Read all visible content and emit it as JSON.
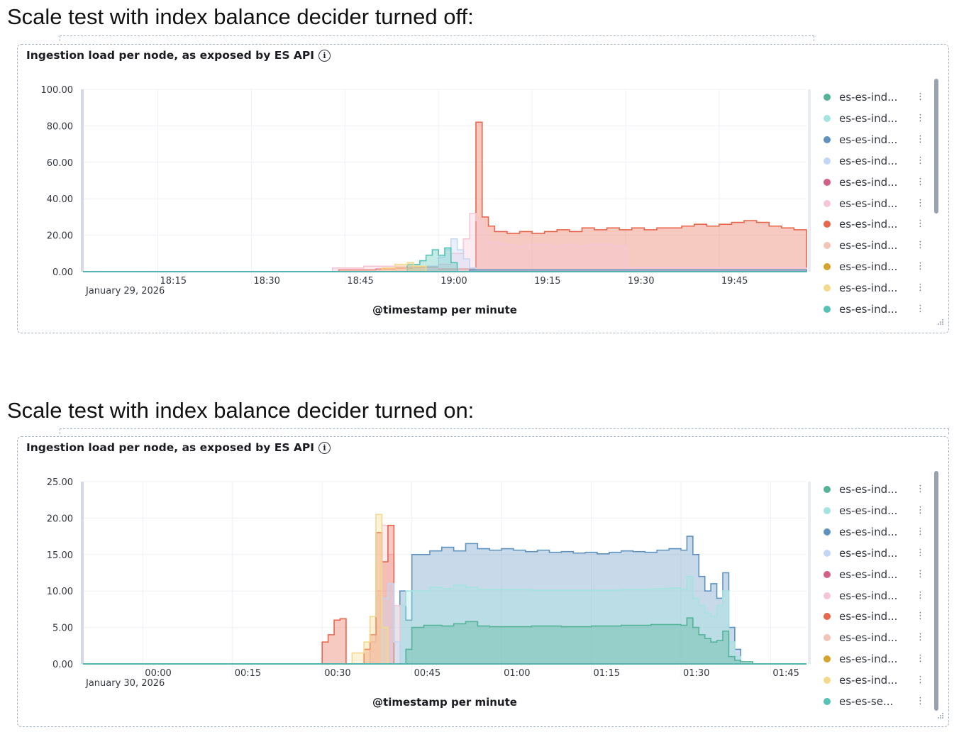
{
  "headings": {
    "off": "Scale test with index balance decider turned off:",
    "on": "Scale test with index balance decider turned on:"
  },
  "colors": {
    "teal": "#54b399",
    "light_teal": "#a3e4e0",
    "blue": "#6092c0",
    "light_blue": "#c4d6f5",
    "pink": "#d36086",
    "light_pink": "#f7c6d6",
    "red": "#e7664c",
    "light_red": "#f5c4b8",
    "gold": "#d6bf57",
    "light_gold": "#f3d98b",
    "grid": "#edf0f5",
    "axis_text": "#343741"
  },
  "chart_data": [
    {
      "type": "area",
      "title": "Ingestion load per node, as exposed by ES API",
      "info_icon": "info-icon",
      "xlabel": "@timestamp per minute",
      "ylabel": "",
      "ylim": [
        0,
        100
      ],
      "y_ticks": [
        "100.00",
        "80.00",
        "60.00",
        "40.00",
        "20.00",
        "0.00"
      ],
      "x_ticks": [
        "18:15",
        "18:30",
        "18:45",
        "19:00",
        "19:15",
        "19:30",
        "19:45"
      ],
      "x_date_label": "January 29, 2026",
      "x_range_minutes": [
        "18:03",
        "19:59"
      ],
      "grid": true,
      "legend_position": "right",
      "legend": [
        "es-es-ind...",
        "es-es-ind...",
        "es-es-ind...",
        "es-es-ind...",
        "es-es-ind...",
        "es-es-ind...",
        "es-es-ind...",
        "es-es-ind...",
        "es-es-ind...",
        "es-es-ind...",
        "es-es-ind..."
      ],
      "legend_colors": [
        "#54b399",
        "#a3e4e0",
        "#6092c0",
        "#c4d6f5",
        "#d36086",
        "#f7c6d6",
        "#e7664c",
        "#f5c4b8",
        "#d6a32b",
        "#f3d98b",
        "#54c2b5"
      ],
      "series": [
        {
          "color": "#e7664c",
          "points": [
            [
              "18:44",
              0
            ],
            [
              "18:44",
              1
            ],
            [
              "18:50",
              1.5
            ],
            [
              "18:53",
              2
            ],
            [
              "18:56",
              2.5
            ],
            [
              "19:00",
              1.5
            ],
            [
              "19:06",
              10
            ],
            [
              "19:06",
              82
            ],
            [
              "19:07",
              82
            ],
            [
              "19:07",
              30
            ],
            [
              "19:08",
              25
            ],
            [
              "19:09",
              22
            ],
            [
              "19:11",
              21
            ],
            [
              "19:13",
              22
            ],
            [
              "19:15",
              21
            ],
            [
              "19:17",
              22
            ],
            [
              "19:19",
              23
            ],
            [
              "19:21",
              22
            ],
            [
              "19:23",
              24
            ],
            [
              "19:25",
              23
            ],
            [
              "19:27",
              24
            ],
            [
              "19:29",
              23
            ],
            [
              "19:31",
              24
            ],
            [
              "19:33",
              23
            ],
            [
              "19:35",
              24
            ],
            [
              "19:37",
              24
            ],
            [
              "19:39",
              25
            ],
            [
              "19:41",
              26
            ],
            [
              "19:43",
              25
            ],
            [
              "19:45",
              26
            ],
            [
              "19:47",
              27
            ],
            [
              "19:49",
              28
            ],
            [
              "19:51",
              27
            ],
            [
              "19:53",
              25
            ],
            [
              "19:55",
              24
            ],
            [
              "19:57",
              23
            ],
            [
              "19:59",
              23
            ],
            [
              "19:59",
              0
            ]
          ]
        },
        {
          "color": "#f7c6d6",
          "points": [
            [
              "18:43",
              0
            ],
            [
              "18:43",
              2
            ],
            [
              "18:48",
              3
            ],
            [
              "18:52",
              3
            ],
            [
              "18:56",
              2
            ],
            [
              "19:00",
              4
            ],
            [
              "19:02",
              10
            ],
            [
              "19:04",
              18
            ],
            [
              "19:05",
              32
            ],
            [
              "19:06",
              28
            ],
            [
              "19:07",
              22
            ],
            [
              "19:08",
              16
            ],
            [
              "19:10",
              15
            ],
            [
              "19:12",
              14
            ],
            [
              "19:14",
              15
            ],
            [
              "19:16",
              15
            ],
            [
              "19:18",
              14
            ],
            [
              "19:20",
              15
            ],
            [
              "19:22",
              14
            ],
            [
              "19:24",
              15
            ],
            [
              "19:26",
              15
            ],
            [
              "19:28",
              14
            ],
            [
              "19:30",
              14
            ],
            [
              "19:30",
              2
            ],
            [
              "19:59",
              2
            ],
            [
              "19:59",
              0
            ]
          ]
        },
        {
          "color": "#c4d6f5",
          "points": [
            [
              "18:58",
              0
            ],
            [
              "18:58",
              3
            ],
            [
              "19:00",
              8
            ],
            [
              "19:01",
              12
            ],
            [
              "19:02",
              18
            ],
            [
              "19:03",
              12
            ],
            [
              "19:04",
              7
            ],
            [
              "19:05",
              2
            ],
            [
              "19:06",
              0
            ]
          ]
        },
        {
          "color": "#54c2b5",
          "points": [
            [
              "18:55",
              0
            ],
            [
              "18:55",
              4
            ],
            [
              "18:57",
              6
            ],
            [
              "18:58",
              9
            ],
            [
              "18:59",
              12
            ],
            [
              "19:00",
              9
            ],
            [
              "19:01",
              13
            ],
            [
              "19:02",
              5
            ],
            [
              "19:03",
              0
            ]
          ]
        },
        {
          "color": "#f3d98b",
          "points": [
            [
              "18:51",
              0
            ],
            [
              "18:51",
              2
            ],
            [
              "18:53",
              4
            ],
            [
              "18:55",
              5
            ],
            [
              "18:56",
              3
            ],
            [
              "18:58",
              0
            ]
          ]
        },
        {
          "color": "#6092c0",
          "points": [
            [
              "19:05",
              0
            ],
            [
              "19:05",
              1
            ],
            [
              "19:59",
              1
            ],
            [
              "19:59",
              0
            ]
          ]
        }
      ]
    },
    {
      "type": "area",
      "title": "Ingestion load per node, as exposed by ES API",
      "info_icon": "info-icon",
      "xlabel": "@timestamp per minute",
      "ylabel": "",
      "ylim": [
        0,
        25
      ],
      "y_ticks": [
        "25.00",
        "20.00",
        "15.00",
        "10.00",
        "5.00",
        "0.00"
      ],
      "x_ticks": [
        "00:00",
        "00:15",
        "00:30",
        "00:45",
        "01:00",
        "01:15",
        "01:30",
        "01:45"
      ],
      "x_date_label": "January 30, 2026",
      "x_range_minutes": [
        "23:50",
        "01:51"
      ],
      "grid": true,
      "legend_position": "right",
      "legend": [
        "es-es-ind...",
        "es-es-ind...",
        "es-es-ind...",
        "es-es-ind...",
        "es-es-ind...",
        "es-es-ind...",
        "es-es-ind...",
        "es-es-ind...",
        "es-es-ind...",
        "es-es-ind...",
        "es-es-se..."
      ],
      "legend_colors": [
        "#54b399",
        "#a3e4e0",
        "#6092c0",
        "#c4d6f5",
        "#d36086",
        "#f7c6d6",
        "#e7664c",
        "#f5c4b8",
        "#d6a32b",
        "#f3d98b",
        "#54c2b5"
      ],
      "series": [
        {
          "color": "#6092c0",
          "points": [
            [
              "00:43",
              0
            ],
            [
              "00:43",
              10
            ],
            [
              "00:44",
              6
            ],
            [
              "00:45",
              15
            ],
            [
              "00:48",
              15.5
            ],
            [
              "00:50",
              16
            ],
            [
              "00:52",
              15.5
            ],
            [
              "00:54",
              16.5
            ],
            [
              "00:56",
              15.8
            ],
            [
              "00:58",
              15.6
            ],
            [
              "01:00",
              15.8
            ],
            [
              "01:02",
              15.6
            ],
            [
              "01:04",
              15.4
            ],
            [
              "01:06",
              15.6
            ],
            [
              "01:08",
              15.3
            ],
            [
              "01:10",
              15.4
            ],
            [
              "01:12",
              15.2
            ],
            [
              "01:14",
              15.3
            ],
            [
              "01:16",
              15.1
            ],
            [
              "01:18",
              15.3
            ],
            [
              "01:20",
              15.5
            ],
            [
              "01:22",
              15.4
            ],
            [
              "01:24",
              15.3
            ],
            [
              "01:26",
              15.6
            ],
            [
              "01:28",
              15.8
            ],
            [
              "01:30",
              15.6
            ],
            [
              "01:31",
              17.5
            ],
            [
              "01:32",
              15
            ],
            [
              "01:33",
              12
            ],
            [
              "01:34",
              10
            ],
            [
              "01:35",
              11
            ],
            [
              "01:36",
              9
            ],
            [
              "01:37",
              12.5
            ],
            [
              "01:38",
              5
            ],
            [
              "01:39",
              2
            ],
            [
              "01:40",
              0
            ]
          ]
        },
        {
          "color": "#a3e4e0",
          "points": [
            [
              "00:42",
              0
            ],
            [
              "00:42",
              8
            ],
            [
              "00:44",
              10
            ],
            [
              "00:46",
              10
            ],
            [
              "00:48",
              10.5
            ],
            [
              "00:50",
              10.3
            ],
            [
              "00:52",
              10.8
            ],
            [
              "00:54",
              10.5
            ],
            [
              "00:56",
              10.2
            ],
            [
              "00:58",
              10.2
            ],
            [
              "01:00",
              10.2
            ],
            [
              "01:05",
              10.1
            ],
            [
              "01:10",
              10.1
            ],
            [
              "01:15",
              10.1
            ],
            [
              "01:20",
              10.2
            ],
            [
              "01:25",
              10.3
            ],
            [
              "01:28",
              10.4
            ],
            [
              "01:30",
              10.2
            ],
            [
              "01:31",
              12
            ],
            [
              "01:32",
              9
            ],
            [
              "01:33",
              8
            ],
            [
              "01:34",
              7
            ],
            [
              "01:35",
              6.5
            ],
            [
              "01:36",
              8
            ],
            [
              "01:37",
              10
            ],
            [
              "01:38",
              3
            ],
            [
              "01:39",
              1
            ],
            [
              "01:40",
              0
            ]
          ]
        },
        {
          "color": "#54b399",
          "points": [
            [
              "00:43",
              0
            ],
            [
              "00:44",
              2
            ],
            [
              "00:45",
              5
            ],
            [
              "00:47",
              5.3
            ],
            [
              "00:50",
              5.2
            ],
            [
              "00:52",
              5.5
            ],
            [
              "00:54",
              5.8
            ],
            [
              "00:56",
              5.2
            ],
            [
              "00:58",
              5.1
            ],
            [
              "01:00",
              5.1
            ],
            [
              "01:05",
              5.2
            ],
            [
              "01:10",
              5.1
            ],
            [
              "01:15",
              5.2
            ],
            [
              "01:20",
              5.3
            ],
            [
              "01:25",
              5.4
            ],
            [
              "01:30",
              5.3
            ],
            [
              "01:31",
              6.3
            ],
            [
              "01:32",
              5
            ],
            [
              "01:33",
              4
            ],
            [
              "01:34",
              3.5
            ],
            [
              "01:35",
              3
            ],
            [
              "01:36",
              3.2
            ],
            [
              "01:37",
              4.5
            ],
            [
              "01:38",
              1
            ],
            [
              "01:39",
              0.5
            ],
            [
              "01:40",
              0.3
            ],
            [
              "01:42",
              0
            ]
          ]
        },
        {
          "color": "#f7c6d6",
          "points": [
            [
              "00:38",
              0
            ],
            [
              "00:38",
              3
            ],
            [
              "00:39",
              10
            ],
            [
              "00:40",
              19
            ],
            [
              "00:41",
              15
            ],
            [
              "00:42",
              8
            ],
            [
              "00:43",
              0
            ]
          ]
        },
        {
          "color": "#e7664c",
          "points": [
            [
              "00:30",
              0
            ],
            [
              "00:30",
              3
            ],
            [
              "00:31",
              4
            ],
            [
              "00:32",
              6
            ],
            [
              "00:33",
              6.2
            ],
            [
              "00:34",
              0
            ],
            [
              "00:37",
              0
            ],
            [
              "00:37",
              2
            ],
            [
              "00:38",
              4
            ],
            [
              "00:39",
              18
            ],
            [
              "00:40",
              14
            ],
            [
              "00:41",
              19
            ],
            [
              "00:42",
              0
            ]
          ]
        },
        {
          "color": "#c4d6f5",
          "points": [
            [
              "00:40",
              0
            ],
            [
              "00:40",
              9
            ],
            [
              "00:41",
              11
            ],
            [
              "00:42",
              3
            ],
            [
              "00:43",
              0
            ]
          ]
        },
        {
          "color": "#f3d98b",
          "points": [
            [
              "00:35",
              0
            ],
            [
              "00:35",
              1.5
            ],
            [
              "00:37",
              3
            ],
            [
              "00:38",
              6.5
            ],
            [
              "00:39",
              20.5
            ],
            [
              "00:40",
              5
            ],
            [
              "00:41",
              0
            ]
          ]
        }
      ]
    }
  ]
}
